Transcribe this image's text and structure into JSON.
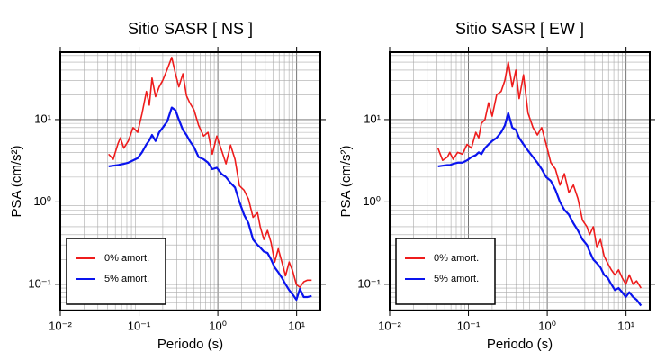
{
  "chart_data": [
    {
      "type": "line",
      "title": "Sitio SASR [ NS ]",
      "x_label": "Periodo (s)",
      "y_label": "PSA (cm/s²)",
      "log_x": true,
      "log_y": true,
      "grid": true,
      "legend": "lower left",
      "xlim": [
        0.01,
        20
      ],
      "ylim": [
        0.048,
        66
      ],
      "xticks": [
        {
          "value": 0.01,
          "label": "10⁻²"
        },
        {
          "value": 0.1,
          "label": "10⁻¹"
        },
        {
          "value": 1,
          "label": "10⁰"
        },
        {
          "value": 10,
          "label": "10¹"
        }
      ],
      "yticks": [
        {
          "value": 0.1,
          "label": "10⁻¹"
        },
        {
          "value": 1,
          "label": "10⁰"
        },
        {
          "value": 10,
          "label": "10¹"
        }
      ],
      "x": [
        0.041,
        0.047,
        0.054,
        0.058,
        0.064,
        0.073,
        0.084,
        0.096,
        0.109,
        0.124,
        0.135,
        0.146,
        0.162,
        0.18,
        0.2,
        0.228,
        0.26,
        0.29,
        0.32,
        0.36,
        0.4,
        0.44,
        0.5,
        0.57,
        0.66,
        0.75,
        0.85,
        0.97,
        1.11,
        1.27,
        1.45,
        1.65,
        1.88,
        2.15,
        2.45,
        2.8,
        3.19,
        3.45,
        3.84,
        4.27,
        4.74,
        5.27,
        5.85,
        6.5,
        7.23,
        8.04,
        8.93,
        9.93,
        11.0,
        12.3,
        13.6,
        15.5
      ],
      "series": [
        {
          "name": "0% amort.",
          "color": "#ee1c1c",
          "values": [
            3.8,
            3.3,
            5.1,
            6,
            4.5,
            5.5,
            8,
            7,
            11.8,
            22,
            15,
            32,
            19,
            25,
            30,
            41,
            57,
            36,
            25,
            36,
            19.5,
            16,
            13,
            8.5,
            6.3,
            7,
            3.8,
            6.3,
            4.3,
            2.9,
            4.9,
            3.3,
            1.57,
            1.39,
            1.08,
            0.65,
            0.74,
            0.5,
            0.35,
            0.45,
            0.32,
            0.186,
            0.27,
            0.186,
            0.127,
            0.186,
            0.144,
            0.099,
            0.092,
            0.107,
            0.112,
            0.112
          ]
        },
        {
          "name": "5% amort.",
          "color": "#0a14ee",
          "values": [
            2.7,
            2.75,
            2.8,
            2.85,
            2.9,
            3.0,
            3.2,
            3.4,
            4.0,
            5.0,
            5.6,
            6.5,
            5.5,
            7.0,
            8.0,
            9.5,
            14,
            13,
            10,
            7.5,
            6.5,
            5.5,
            4.6,
            3.5,
            3.3,
            3.0,
            2.5,
            2.6,
            2.2,
            2.0,
            1.7,
            1.5,
            1.0,
            0.7,
            0.55,
            0.35,
            0.3,
            0.28,
            0.25,
            0.24,
            0.2,
            0.16,
            0.14,
            0.12,
            0.1,
            0.085,
            0.075,
            0.065,
            0.088,
            0.07,
            0.07,
            0.072
          ]
        }
      ]
    },
    {
      "type": "line",
      "title": "Sitio SASR [ EW ]",
      "x_label": "Periodo (s)",
      "y_label": "PSA (cm/s²)",
      "log_x": true,
      "log_y": true,
      "grid": true,
      "legend": "lower left",
      "xlim": [
        0.01,
        20
      ],
      "ylim": [
        0.048,
        66
      ],
      "xticks": [
        {
          "value": 0.01,
          "label": "10⁻²"
        },
        {
          "value": 0.1,
          "label": "10⁻¹"
        },
        {
          "value": 1,
          "label": "10⁰"
        },
        {
          "value": 10,
          "label": "10¹"
        }
      ],
      "yticks": [
        {
          "value": 0.1,
          "label": "10⁻¹"
        },
        {
          "value": 1,
          "label": "10⁰"
        },
        {
          "value": 10,
          "label": "10¹"
        }
      ],
      "x": [
        0.041,
        0.047,
        0.054,
        0.058,
        0.064,
        0.073,
        0.084,
        0.096,
        0.109,
        0.124,
        0.135,
        0.146,
        0.162,
        0.18,
        0.2,
        0.228,
        0.26,
        0.29,
        0.32,
        0.36,
        0.4,
        0.44,
        0.5,
        0.57,
        0.66,
        0.75,
        0.85,
        0.97,
        1.11,
        1.27,
        1.45,
        1.65,
        1.88,
        2.15,
        2.45,
        2.8,
        3.19,
        3.45,
        3.84,
        4.27,
        4.74,
        5.27,
        5.85,
        6.5,
        7.23,
        8.04,
        8.93,
        9.93,
        11.0,
        12.3,
        13.6,
        15.5
      ],
      "series": [
        {
          "name": "0% amort.",
          "color": "#ee1c1c",
          "values": [
            4.5,
            3.2,
            3.5,
            4.0,
            3.3,
            4.0,
            3.8,
            5.0,
            4.5,
            7,
            6,
            9,
            10,
            16,
            11,
            20,
            22,
            30,
            50,
            25,
            40,
            18,
            35,
            12,
            8,
            6.5,
            8,
            5,
            3,
            2.5,
            1.6,
            2.2,
            1.3,
            1.6,
            1.1,
            0.6,
            0.5,
            0.4,
            0.5,
            0.28,
            0.35,
            0.22,
            0.18,
            0.15,
            0.13,
            0.15,
            0.12,
            0.1,
            0.13,
            0.1,
            0.11,
            0.09
          ]
        },
        {
          "name": "5% amort.",
          "color": "#0a14ee",
          "values": [
            2.7,
            2.75,
            2.8,
            2.8,
            2.9,
            3.0,
            3.0,
            3.2,
            3.5,
            3.7,
            4.0,
            3.8,
            4.5,
            5.0,
            5.5,
            6.0,
            7.0,
            8.5,
            12,
            8,
            7.5,
            6,
            5,
            4.2,
            3.5,
            3.0,
            2.5,
            2.0,
            1.8,
            1.4,
            1.0,
            0.8,
            0.7,
            0.55,
            0.45,
            0.35,
            0.3,
            0.25,
            0.2,
            0.18,
            0.16,
            0.13,
            0.12,
            0.1,
            0.085,
            0.09,
            0.08,
            0.07,
            0.08,
            0.07,
            0.065,
            0.055
          ]
        }
      ]
    }
  ]
}
